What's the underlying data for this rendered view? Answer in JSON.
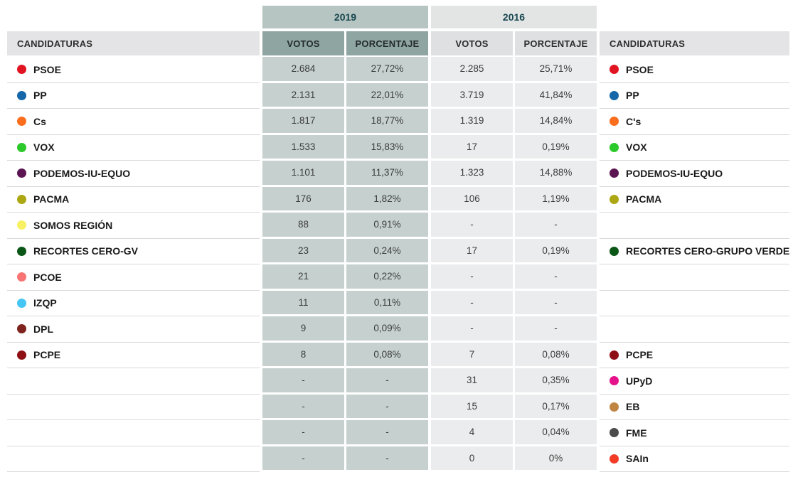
{
  "chart_data": {
    "type": "table",
    "left_column_header": "CANDIDATURAS",
    "right_column_header": "CANDIDATURAS",
    "year_groups": [
      {
        "year": "2019",
        "columns": [
          "VOTOS",
          "PORCENTAJE"
        ]
      },
      {
        "year": "2016",
        "columns": [
          "VOTOS",
          "PORCENTAJE"
        ]
      }
    ],
    "rows": [
      {
        "left_label": "PSOE",
        "left_color": "#e11422",
        "votos_2019": "2.684",
        "porcentaje_2019": "27,72%",
        "votos_2016": "2.285",
        "porcentaje_2016": "25,71%",
        "right_label": "PSOE",
        "right_color": "#e11422"
      },
      {
        "left_label": "PP",
        "left_color": "#1567a9",
        "votos_2019": "2.131",
        "porcentaje_2019": "22,01%",
        "votos_2016": "3.719",
        "porcentaje_2016": "41,84%",
        "right_label": "PP",
        "right_color": "#1567a9"
      },
      {
        "left_label": "Cs",
        "left_color": "#fa6e1e",
        "votos_2019": "1.817",
        "porcentaje_2019": "18,77%",
        "votos_2016": "1.319",
        "porcentaje_2016": "14,84%",
        "right_label": "C's",
        "right_color": "#fa6e1e"
      },
      {
        "left_label": "VOX",
        "left_color": "#2bc929",
        "votos_2019": "1.533",
        "porcentaje_2019": "15,83%",
        "votos_2016": "17",
        "porcentaje_2016": "0,19%",
        "right_label": "VOX",
        "right_color": "#2bc929"
      },
      {
        "left_label": "PODEMOS-IU-EQUO",
        "left_color": "#5c1553",
        "votos_2019": "1.101",
        "porcentaje_2019": "11,37%",
        "votos_2016": "1.323",
        "porcentaje_2016": "14,88%",
        "right_label": "PODEMOS-IU-EQUO",
        "right_color": "#5c1553"
      },
      {
        "left_label": "PACMA",
        "left_color": "#aca712",
        "votos_2019": "176",
        "porcentaje_2019": "1,82%",
        "votos_2016": "106",
        "porcentaje_2016": "1,19%",
        "right_label": "PACMA",
        "right_color": "#aca712"
      },
      {
        "left_label": "SOMOS REGIÓN",
        "left_color": "#f7f163",
        "votos_2019": "88",
        "porcentaje_2019": "0,91%",
        "votos_2016": "-",
        "porcentaje_2016": "-",
        "right_label": "",
        "right_color": ""
      },
      {
        "left_label": "RECORTES CERO-GV",
        "left_color": "#0b5718",
        "votos_2019": "23",
        "porcentaje_2019": "0,24%",
        "votos_2016": "17",
        "porcentaje_2016": "0,19%",
        "right_label": "RECORTES CERO-GRUPO VERDE",
        "right_color": "#0b5718"
      },
      {
        "left_label": "PCOE",
        "left_color": "#f97472",
        "votos_2019": "21",
        "porcentaje_2019": "0,22%",
        "votos_2016": "-",
        "porcentaje_2016": "-",
        "right_label": "",
        "right_color": ""
      },
      {
        "left_label": "IZQP",
        "left_color": "#45c6f4",
        "votos_2019": "11",
        "porcentaje_2019": "0,11%",
        "votos_2016": "-",
        "porcentaje_2016": "-",
        "right_label": "",
        "right_color": ""
      },
      {
        "left_label": "DPL",
        "left_color": "#7e231e",
        "votos_2019": "9",
        "porcentaje_2019": "0,09%",
        "votos_2016": "-",
        "porcentaje_2016": "-",
        "right_label": "",
        "right_color": ""
      },
      {
        "left_label": "PCPE",
        "left_color": "#8e0f14",
        "votos_2019": "8",
        "porcentaje_2019": "0,08%",
        "votos_2016": "7",
        "porcentaje_2016": "0,08%",
        "right_label": "PCPE",
        "right_color": "#8e0f14"
      },
      {
        "left_label": "",
        "left_color": "",
        "votos_2019": "-",
        "porcentaje_2019": "-",
        "votos_2016": "31",
        "porcentaje_2016": "0,35%",
        "right_label": "UPyD",
        "right_color": "#e5138b"
      },
      {
        "left_label": "",
        "left_color": "",
        "votos_2019": "-",
        "porcentaje_2019": "-",
        "votos_2016": "15",
        "porcentaje_2016": "0,17%",
        "right_label": "EB",
        "right_color": "#bf8643"
      },
      {
        "left_label": "",
        "left_color": "",
        "votos_2019": "-",
        "porcentaje_2019": "-",
        "votos_2016": "4",
        "porcentaje_2016": "0,04%",
        "right_label": "FME",
        "right_color": "#4b4b4b"
      },
      {
        "left_label": "",
        "left_color": "",
        "votos_2019": "-",
        "porcentaje_2019": "-",
        "votos_2016": "0",
        "porcentaje_2016": "0%",
        "right_label": "SAIn",
        "right_color": "#f23c26"
      }
    ]
  },
  "colors": {
    "year_2019_band_bg": "#b7c5c2",
    "header_2019_bg": "#8fa5a2",
    "cell_2019_bg": "#c6d1cf",
    "year_2016_band_bg": "#e3e5e5",
    "header_2016_bg": "#dfe0e1",
    "cell_2016_bg": "#ebeced",
    "candidaturas_header_bg": "#e4e4e6",
    "year_text": "#17474f",
    "row_border": "#d9d9d9"
  }
}
